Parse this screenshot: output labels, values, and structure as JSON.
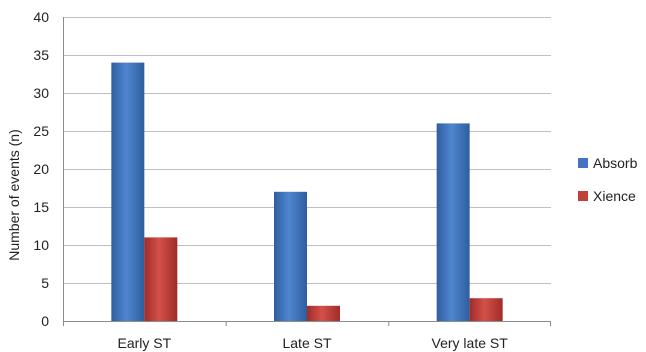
{
  "chart_data": {
    "type": "bar",
    "title": "",
    "xlabel": "",
    "ylabel": "Number of events (n)",
    "categories": [
      "Early ST",
      "Late ST",
      "Very late ST"
    ],
    "series": [
      {
        "name": "Absorb",
        "values": [
          34,
          17,
          26
        ],
        "color": "#4472c4"
      },
      {
        "name": "Xience",
        "values": [
          11,
          2,
          3
        ],
        "color": "#c0403a"
      }
    ],
    "ylim": [
      0,
      40
    ],
    "yticks": [
      0,
      5,
      10,
      15,
      20,
      25,
      30,
      35,
      40
    ],
    "grid": true,
    "legend_position": "right"
  }
}
